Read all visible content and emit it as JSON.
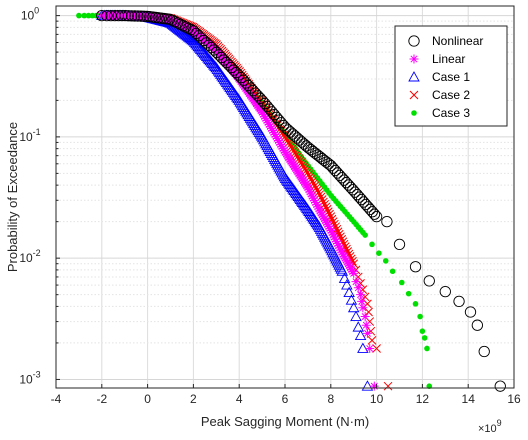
{
  "chart_data": {
    "type": "scatter",
    "xlabel": "Peak Sagging Moment (N·m)",
    "ylabel": "Probability of Exceedance",
    "x_exponent_label": "×10",
    "x_exponent_power": "9",
    "xlim": [
      -4,
      16
    ],
    "ylim": [
      0.00085,
      1.2
    ],
    "yscale": "log",
    "grid": true,
    "legend_position": "top-right",
    "x_ticks": [
      "-4",
      "-2",
      "0",
      "2",
      "4",
      "6",
      "8",
      "10",
      "12",
      "14",
      "16"
    ],
    "y_ticks": [
      {
        "value": 1,
        "base": "10",
        "power": "0"
      },
      {
        "value": 0.1,
        "base": "10",
        "power": "-1"
      },
      {
        "value": 0.01,
        "base": "10",
        "power": "-2"
      },
      {
        "value": 0.001,
        "base": "10",
        "power": "-3"
      }
    ],
    "series": [
      {
        "name": "Nonlinear",
        "marker": "circle",
        "color": "#000000",
        "curve": [
          [
            -2.0,
            1.0
          ],
          [
            -1.0,
            1.0
          ],
          [
            0.0,
            0.985
          ],
          [
            1.0,
            0.93
          ],
          [
            2.0,
            0.75
          ],
          [
            3.0,
            0.5
          ],
          [
            4.0,
            0.32
          ],
          [
            5.0,
            0.2
          ],
          [
            6.0,
            0.12
          ],
          [
            7.0,
            0.082
          ],
          [
            8.0,
            0.058
          ],
          [
            9.0,
            0.036
          ],
          [
            10.0,
            0.022
          ]
        ],
        "tail": [
          [
            10.45,
            0.02
          ],
          [
            11.0,
            0.013
          ],
          [
            11.7,
            0.0085
          ],
          [
            12.3,
            0.0065
          ],
          [
            13.0,
            0.0053
          ],
          [
            13.6,
            0.0044
          ],
          [
            14.1,
            0.0036
          ],
          [
            14.4,
            0.0028
          ],
          [
            14.7,
            0.0017
          ],
          [
            15.4,
            0.00088
          ]
        ]
      },
      {
        "name": "Linear",
        "marker": "asterisk",
        "color": "#ff00ff",
        "curve": [
          [
            -2.0,
            1.0
          ],
          [
            -1.0,
            1.0
          ],
          [
            0.0,
            0.99
          ],
          [
            1.0,
            0.93
          ],
          [
            2.0,
            0.75
          ],
          [
            3.0,
            0.52
          ],
          [
            4.0,
            0.3
          ],
          [
            5.0,
            0.16
          ],
          [
            6.0,
            0.075
          ],
          [
            7.0,
            0.038
          ],
          [
            7.5,
            0.025
          ],
          [
            8.0,
            0.017
          ],
          [
            8.5,
            0.011
          ],
          [
            9.0,
            0.0075
          ]
        ],
        "tail": [
          [
            9.1,
            0.0064
          ],
          [
            9.2,
            0.0057
          ],
          [
            9.3,
            0.005
          ],
          [
            9.35,
            0.0044
          ],
          [
            9.4,
            0.0039
          ],
          [
            9.5,
            0.0033
          ],
          [
            9.55,
            0.0028
          ],
          [
            9.6,
            0.0024
          ],
          [
            9.7,
            0.0018
          ],
          [
            9.9,
            0.00088
          ]
        ]
      },
      {
        "name": "Case 1",
        "marker": "triangle",
        "color": "#0000ff",
        "curve": [
          [
            -2.0,
            1.0
          ],
          [
            -1.0,
            1.0
          ],
          [
            0.0,
            0.97
          ],
          [
            1.0,
            0.87
          ],
          [
            2.0,
            0.62
          ],
          [
            3.0,
            0.37
          ],
          [
            4.0,
            0.2
          ],
          [
            5.0,
            0.1
          ],
          [
            6.0,
            0.046
          ],
          [
            7.0,
            0.025
          ],
          [
            7.5,
            0.018
          ],
          [
            8.0,
            0.012
          ],
          [
            8.5,
            0.0078
          ]
        ],
        "tail": [
          [
            8.6,
            0.0068
          ],
          [
            8.7,
            0.006
          ],
          [
            8.8,
            0.0052
          ],
          [
            8.9,
            0.0045
          ],
          [
            9.0,
            0.0039
          ],
          [
            9.1,
            0.0033
          ],
          [
            9.2,
            0.0027
          ],
          [
            9.3,
            0.0023
          ],
          [
            9.4,
            0.0018
          ],
          [
            9.6,
            0.00088
          ]
        ]
      },
      {
        "name": "Case 2",
        "marker": "x",
        "color": "#ff0000",
        "curve": [
          [
            -2.0,
            1.0
          ],
          [
            -1.0,
            1.0
          ],
          [
            0.0,
            0.99
          ],
          [
            1.0,
            0.95
          ],
          [
            2.0,
            0.8
          ],
          [
            3.0,
            0.58
          ],
          [
            4.0,
            0.35
          ],
          [
            5.0,
            0.19
          ],
          [
            6.0,
            0.1
          ],
          [
            7.0,
            0.05
          ],
          [
            7.5,
            0.034
          ],
          [
            8.0,
            0.022
          ],
          [
            8.5,
            0.014
          ],
          [
            9.0,
            0.009
          ]
        ],
        "tail": [
          [
            9.1,
            0.008
          ],
          [
            9.2,
            0.007
          ],
          [
            9.3,
            0.0062
          ],
          [
            9.4,
            0.0055
          ],
          [
            9.5,
            0.0048
          ],
          [
            9.6,
            0.0042
          ],
          [
            9.65,
            0.0036
          ],
          [
            9.7,
            0.003
          ],
          [
            9.75,
            0.0025
          ],
          [
            9.8,
            0.0021
          ],
          [
            10.0,
            0.0018
          ],
          [
            10.5,
            0.00088
          ]
        ]
      },
      {
        "name": "Case 3",
        "marker": "dot",
        "color": "#00e000",
        "curve": [
          [
            -3.0,
            1.0
          ],
          [
            -2.0,
            1.0
          ],
          [
            -1.0,
            0.995
          ],
          [
            0.0,
            0.97
          ],
          [
            1.0,
            0.9
          ],
          [
            2.0,
            0.72
          ],
          [
            3.0,
            0.5
          ],
          [
            4.0,
            0.32
          ],
          [
            5.0,
            0.19
          ],
          [
            6.0,
            0.105
          ],
          [
            7.0,
            0.058
          ],
          [
            8.0,
            0.033
          ],
          [
            9.0,
            0.02
          ],
          [
            9.5,
            0.0155
          ]
        ],
        "tail": [
          [
            9.8,
            0.013
          ],
          [
            10.1,
            0.011
          ],
          [
            10.4,
            0.0095
          ],
          [
            10.7,
            0.0078
          ],
          [
            11.1,
            0.0063
          ],
          [
            11.4,
            0.0051
          ],
          [
            11.7,
            0.0042
          ],
          [
            11.9,
            0.0033
          ],
          [
            12.0,
            0.0025
          ],
          [
            12.1,
            0.0022
          ],
          [
            12.2,
            0.0018
          ],
          [
            12.3,
            0.00088
          ]
        ]
      }
    ]
  }
}
